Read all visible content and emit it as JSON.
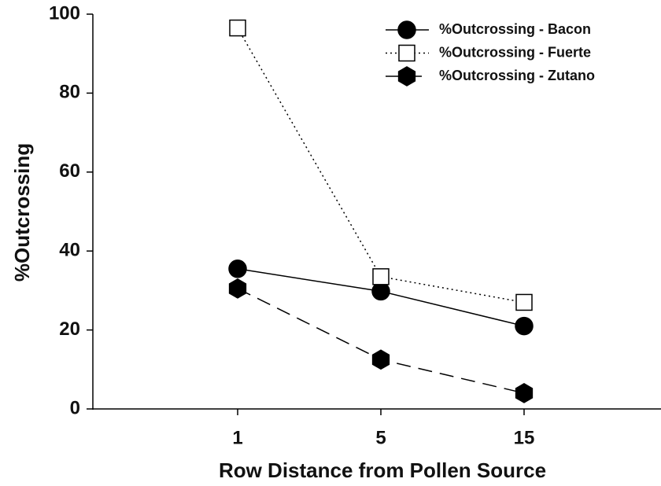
{
  "chart_data": {
    "type": "line",
    "xlabel": "Row Distance from Pollen Source",
    "ylabel": "%Outcrossing",
    "categories": [
      "1",
      "5",
      "15"
    ],
    "ylim": [
      0,
      100
    ],
    "yticks": [
      0,
      20,
      40,
      60,
      80,
      100
    ],
    "legend": "upper right",
    "series": [
      {
        "name": "%Outcrossing - Bacon",
        "color": "#000000",
        "marker": "circle",
        "fill": "#000000",
        "linestyle": "solid",
        "values": [
          35.5,
          29.8,
          21
        ]
      },
      {
        "name": "%Outcrossing - Fuerte",
        "color": "#000000",
        "marker": "square",
        "fill": "#ffffff",
        "linestyle": "dotted",
        "values": [
          96.5,
          33.5,
          27
        ]
      },
      {
        "name": "%Outcrossing - Zutano",
        "color": "#000000",
        "marker": "hexagon",
        "fill": "#000000",
        "linestyle": "dashed",
        "values": [
          30.5,
          12.5,
          4
        ]
      }
    ]
  }
}
